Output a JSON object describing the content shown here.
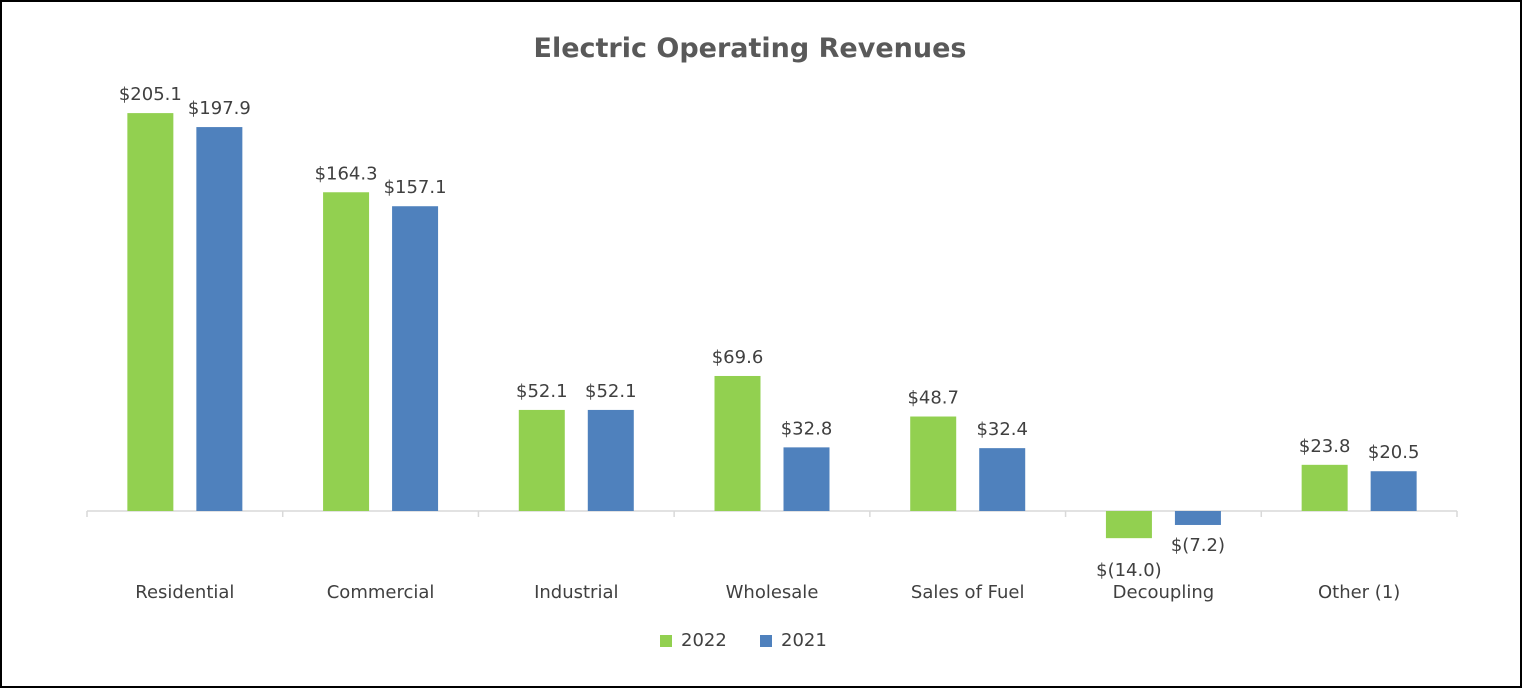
{
  "chart_data": {
    "type": "bar",
    "title": "Electric Operating Revenues",
    "xlabel": "",
    "ylabel": "",
    "categories": [
      "Residential",
      "Commercial",
      "Industrial",
      "Wholesale",
      "Sales of Fuel",
      "Decoupling",
      "Other (1)"
    ],
    "series": [
      {
        "name": "2022",
        "color": "#92d050",
        "values": [
          205.1,
          164.3,
          52.1,
          69.6,
          48.7,
          -14.0,
          23.8
        ],
        "labels": [
          "$205.1",
          "$164.3",
          "$52.1",
          "$69.6",
          "$48.7",
          "$(14.0)",
          "$23.8"
        ]
      },
      {
        "name": "2021",
        "color": "#4f81bd",
        "values": [
          197.9,
          157.1,
          52.1,
          32.8,
          32.4,
          -7.2,
          20.5
        ],
        "labels": [
          "$197.9",
          "$157.1",
          "$52.1",
          "$32.8",
          "$32.4",
          "$(7.2)",
          "$20.5"
        ]
      }
    ],
    "ylim": [
      -20,
      210
    ],
    "grid": false,
    "legend": "bottom-center",
    "axis_color": "#d9d9d9"
  }
}
